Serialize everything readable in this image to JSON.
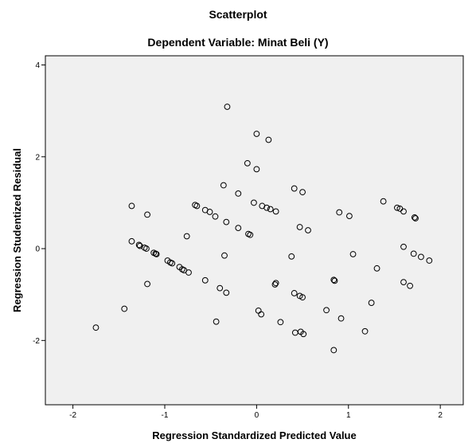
{
  "chart_data": {
    "type": "scatter",
    "title": "Scatterplot",
    "subtitle": "Dependent Variable: Minat Beli (Y)",
    "xlabel": "Regression Standardized Predicted Value",
    "ylabel": "Regression Studentized Residual",
    "xlim": [
      -2.3,
      2.25
    ],
    "ylim": [
      -3.4,
      4.2
    ],
    "xticks": [
      "-2",
      "-1",
      "0",
      "1",
      "2"
    ],
    "yticks": [
      "-2",
      "0",
      "2",
      "4"
    ],
    "grid": false,
    "marker": "open-circle",
    "points": [
      {
        "x": -1.75,
        "y": -1.72
      },
      {
        "x": -1.44,
        "y": -1.31
      },
      {
        "x": -1.36,
        "y": 0.93
      },
      {
        "x": -1.36,
        "y": 0.16
      },
      {
        "x": -1.28,
        "y": 0.08
      },
      {
        "x": -1.27,
        "y": 0.06
      },
      {
        "x": -1.22,
        "y": 0.02
      },
      {
        "x": -1.2,
        "y": 0.0
      },
      {
        "x": -1.19,
        "y": 0.74
      },
      {
        "x": -1.19,
        "y": -0.77
      },
      {
        "x": -1.12,
        "y": -0.09
      },
      {
        "x": -1.1,
        "y": -0.11
      },
      {
        "x": -1.09,
        "y": -0.12
      },
      {
        "x": -0.97,
        "y": -0.26
      },
      {
        "x": -0.94,
        "y": -0.3
      },
      {
        "x": -0.92,
        "y": -0.32
      },
      {
        "x": -0.84,
        "y": -0.4
      },
      {
        "x": -0.81,
        "y": -0.45
      },
      {
        "x": -0.79,
        "y": -0.47
      },
      {
        "x": -0.76,
        "y": 0.27
      },
      {
        "x": -0.74,
        "y": -0.52
      },
      {
        "x": -0.67,
        "y": 0.95
      },
      {
        "x": -0.65,
        "y": 0.93
      },
      {
        "x": -0.56,
        "y": 0.84
      },
      {
        "x": -0.56,
        "y": -0.69
      },
      {
        "x": -0.51,
        "y": 0.8
      },
      {
        "x": -0.45,
        "y": 0.7
      },
      {
        "x": -0.44,
        "y": -1.59
      },
      {
        "x": -0.4,
        "y": -0.86
      },
      {
        "x": -0.36,
        "y": 1.38
      },
      {
        "x": -0.35,
        "y": -0.15
      },
      {
        "x": -0.33,
        "y": 0.58
      },
      {
        "x": -0.33,
        "y": -0.96
      },
      {
        "x": -0.32,
        "y": 3.09
      },
      {
        "x": -0.2,
        "y": 1.2
      },
      {
        "x": -0.2,
        "y": 0.45
      },
      {
        "x": -0.1,
        "y": 1.86
      },
      {
        "x": -0.09,
        "y": 0.32
      },
      {
        "x": -0.07,
        "y": 0.3
      },
      {
        "x": -0.03,
        "y": 1.0
      },
      {
        "x": 0.0,
        "y": 2.5
      },
      {
        "x": 0.0,
        "y": 1.73
      },
      {
        "x": 0.02,
        "y": -1.35
      },
      {
        "x": 0.05,
        "y": -1.43
      },
      {
        "x": 0.06,
        "y": 0.93
      },
      {
        "x": 0.11,
        "y": 0.89
      },
      {
        "x": 0.13,
        "y": 2.37
      },
      {
        "x": 0.15,
        "y": 0.86
      },
      {
        "x": 0.2,
        "y": -0.78
      },
      {
        "x": 0.21,
        "y": -0.75
      },
      {
        "x": 0.21,
        "y": 0.81
      },
      {
        "x": 0.26,
        "y": -1.6
      },
      {
        "x": 0.38,
        "y": -0.17
      },
      {
        "x": 0.41,
        "y": 1.31
      },
      {
        "x": 0.41,
        "y": -0.97
      },
      {
        "x": 0.42,
        "y": -1.83
      },
      {
        "x": 0.47,
        "y": 0.47
      },
      {
        "x": 0.47,
        "y": -1.03
      },
      {
        "x": 0.48,
        "y": -1.81
      },
      {
        "x": 0.5,
        "y": 1.23
      },
      {
        "x": 0.5,
        "y": -1.06
      },
      {
        "x": 0.51,
        "y": -1.86
      },
      {
        "x": 0.56,
        "y": 0.4
      },
      {
        "x": 0.76,
        "y": -1.34
      },
      {
        "x": 0.84,
        "y": -2.21
      },
      {
        "x": 0.84,
        "y": -0.68
      },
      {
        "x": 0.85,
        "y": -0.7
      },
      {
        "x": 0.9,
        "y": 0.79
      },
      {
        "x": 0.92,
        "y": -1.52
      },
      {
        "x": 1.01,
        "y": 0.71
      },
      {
        "x": 1.05,
        "y": -0.12
      },
      {
        "x": 1.18,
        "y": -1.8
      },
      {
        "x": 1.25,
        "y": -1.18
      },
      {
        "x": 1.31,
        "y": -0.43
      },
      {
        "x": 1.38,
        "y": 1.03
      },
      {
        "x": 1.53,
        "y": 0.89
      },
      {
        "x": 1.56,
        "y": 0.87
      },
      {
        "x": 1.6,
        "y": 0.81
      },
      {
        "x": 1.6,
        "y": 0.04
      },
      {
        "x": 1.6,
        "y": -0.73
      },
      {
        "x": 1.67,
        "y": -0.81
      },
      {
        "x": 1.71,
        "y": -0.11
      },
      {
        "x": 1.72,
        "y": 0.68
      },
      {
        "x": 1.73,
        "y": 0.66
      },
      {
        "x": 1.79,
        "y": -0.18
      },
      {
        "x": 1.88,
        "y": -0.26
      }
    ]
  }
}
